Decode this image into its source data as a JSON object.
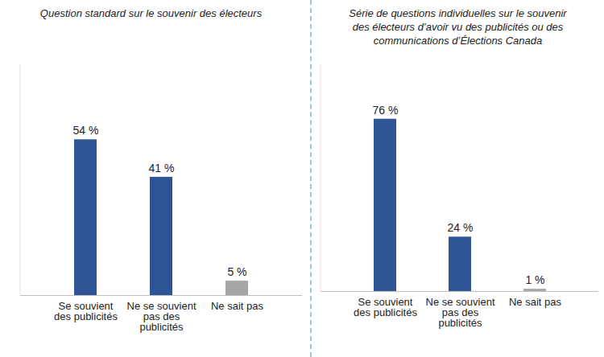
{
  "chart_data": [
    {
      "type": "bar",
      "title": "Question standard sur le souvenir des électeurs",
      "categories": [
        "Se souvient des publicités",
        "Ne se souvient pas des publicités",
        "Ne sait pas"
      ],
      "values": [
        54,
        41,
        5
      ],
      "value_labels": [
        "54 %",
        "41 %",
        "5 %"
      ],
      "colors": [
        "#2f5597",
        "#2f5597",
        "#a6a6a6"
      ],
      "ylim": [
        0,
        80
      ],
      "yticks": [],
      "data_labels": true,
      "tick_labels": "x"
    },
    {
      "type": "bar",
      "title": "Série de questions individuelles sur le souvenir des électeurs d’avoir vu des publicités ou des communications d’Élections Canada",
      "categories": [
        "Se souvient des publicités",
        "Ne se souvient pas des publicités",
        "Ne sait pas"
      ],
      "values": [
        76,
        24,
        1
      ],
      "value_labels": [
        "76 %",
        "24 %",
        "1 %"
      ],
      "colors": [
        "#2f5597",
        "#2f5597",
        "#a6a6a6"
      ],
      "ylim": [
        0,
        100
      ],
      "yticks": [],
      "data_labels": true,
      "tick_labels": "x"
    }
  ]
}
